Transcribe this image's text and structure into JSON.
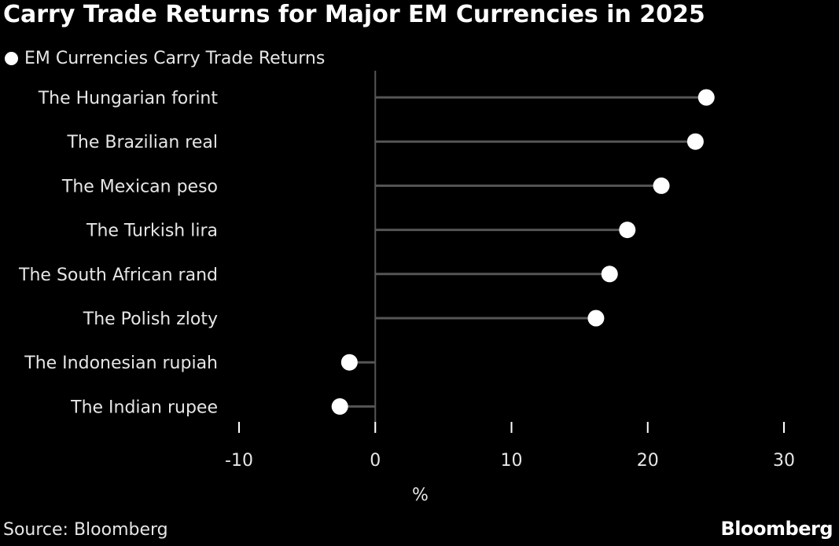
{
  "chart_data": {
    "type": "lollipop",
    "title": "Carry Trade Returns for Major EM Currencies in 2025",
    "legend": [
      {
        "label": "EM Currencies Carry Trade Returns",
        "marker": "circle",
        "color": "#ffffff"
      }
    ],
    "legend_position": "top-left",
    "categories": [
      "The Hungarian forint",
      "The Brazilian real",
      "The Mexican peso",
      "The Turkish lira",
      "The South African rand",
      "The Polish zloty",
      "The Indonesian rupiah",
      "The Indian rupee"
    ],
    "series": [
      {
        "name": "EM Currencies Carry Trade Returns",
        "values": [
          24.3,
          23.5,
          21.0,
          18.5,
          17.2,
          16.2,
          -1.9,
          -2.6
        ]
      }
    ],
    "x_ticks": [
      -10,
      0,
      10,
      20,
      30
    ],
    "x_tick_labels": [
      "-10",
      "0",
      "10",
      "20",
      "30"
    ],
    "xlim": [
      -10,
      30
    ],
    "xlabel": "%",
    "grid": false,
    "colors": {
      "background": "#000000",
      "marker": "#ffffff",
      "stem": "#555555",
      "axis": "#ffffff",
      "text": "#e6e6e6"
    }
  },
  "footer": {
    "source": "Source: Bloomberg",
    "brand": "Bloomberg"
  }
}
